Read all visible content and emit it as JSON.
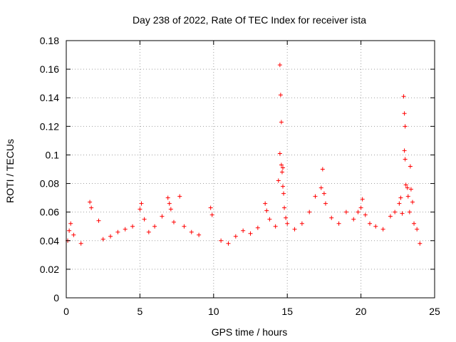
{
  "chart_data": {
    "type": "scatter",
    "title": "Day 238 of 2022, Rate Of TEC Index for receiver ista",
    "xlabel": "GPS time / hours",
    "ylabel": "ROTI / TECUs",
    "xlim": [
      0,
      25
    ],
    "ylim": [
      0,
      0.18
    ],
    "x_ticks": [
      0,
      5,
      10,
      15,
      20,
      25
    ],
    "x_tick_labels": [
      "0",
      "5",
      "10",
      "15",
      "20",
      "25"
    ],
    "y_ticks": [
      0,
      0.02,
      0.04,
      0.06,
      0.08,
      0.1,
      0.12,
      0.14,
      0.16,
      0.18
    ],
    "y_tick_labels": [
      "0",
      "0.02",
      "0.04",
      "0.06",
      "0.08",
      "0.1",
      "0.12",
      "0.14",
      "0.16",
      "0.18"
    ],
    "grid": true,
    "marker": "+",
    "series": [
      {
        "name": "ROTI",
        "color": "#ff0000",
        "points": [
          [
            0.1,
            0.04
          ],
          [
            0.2,
            0.047
          ],
          [
            0.3,
            0.052
          ],
          [
            0.5,
            0.044
          ],
          [
            1.0,
            0.038
          ],
          [
            1.6,
            0.067
          ],
          [
            1.7,
            0.063
          ],
          [
            2.2,
            0.054
          ],
          [
            2.5,
            0.041
          ],
          [
            3.0,
            0.043
          ],
          [
            3.5,
            0.046
          ],
          [
            4.0,
            0.048
          ],
          [
            4.5,
            0.05
          ],
          [
            5.0,
            0.062
          ],
          [
            5.1,
            0.066
          ],
          [
            5.3,
            0.055
          ],
          [
            5.6,
            0.046
          ],
          [
            6.0,
            0.05
          ],
          [
            6.5,
            0.057
          ],
          [
            6.9,
            0.07
          ],
          [
            7.0,
            0.066
          ],
          [
            7.1,
            0.062
          ],
          [
            7.3,
            0.053
          ],
          [
            7.7,
            0.071
          ],
          [
            8.0,
            0.05
          ],
          [
            8.5,
            0.046
          ],
          [
            9.0,
            0.044
          ],
          [
            9.8,
            0.063
          ],
          [
            9.9,
            0.058
          ],
          [
            10.5,
            0.04
          ],
          [
            11.0,
            0.038
          ],
          [
            11.5,
            0.043
          ],
          [
            12.0,
            0.047
          ],
          [
            12.5,
            0.045
          ],
          [
            13.0,
            0.049
          ],
          [
            13.5,
            0.066
          ],
          [
            13.6,
            0.061
          ],
          [
            13.8,
            0.055
          ],
          [
            14.2,
            0.05
          ],
          [
            14.4,
            0.082
          ],
          [
            14.5,
            0.163
          ],
          [
            14.55,
            0.142
          ],
          [
            14.6,
            0.123
          ],
          [
            14.5,
            0.101
          ],
          [
            14.6,
            0.093
          ],
          [
            14.7,
            0.091
          ],
          [
            14.65,
            0.088
          ],
          [
            14.7,
            0.078
          ],
          [
            14.75,
            0.073
          ],
          [
            14.8,
            0.063
          ],
          [
            14.9,
            0.056
          ],
          [
            15.0,
            0.052
          ],
          [
            15.5,
            0.048
          ],
          [
            16.0,
            0.052
          ],
          [
            16.5,
            0.06
          ],
          [
            16.9,
            0.071
          ],
          [
            17.3,
            0.077
          ],
          [
            17.4,
            0.09
          ],
          [
            17.5,
            0.073
          ],
          [
            17.6,
            0.066
          ],
          [
            18.0,
            0.056
          ],
          [
            18.5,
            0.052
          ],
          [
            19.0,
            0.06
          ],
          [
            19.5,
            0.055
          ],
          [
            19.8,
            0.06
          ],
          [
            20.0,
            0.063
          ],
          [
            20.1,
            0.069
          ],
          [
            20.3,
            0.058
          ],
          [
            20.6,
            0.052
          ],
          [
            21.0,
            0.05
          ],
          [
            21.5,
            0.048
          ],
          [
            22.0,
            0.057
          ],
          [
            22.3,
            0.06
          ],
          [
            22.6,
            0.066
          ],
          [
            22.7,
            0.07
          ],
          [
            22.8,
            0.059
          ],
          [
            22.9,
            0.141
          ],
          [
            22.95,
            0.129
          ],
          [
            23.0,
            0.12
          ],
          [
            22.95,
            0.103
          ],
          [
            23.0,
            0.097
          ],
          [
            23.05,
            0.079
          ],
          [
            23.15,
            0.077
          ],
          [
            23.2,
            0.071
          ],
          [
            23.3,
            0.06
          ],
          [
            23.4,
            0.076
          ],
          [
            23.5,
            0.067
          ],
          [
            23.35,
            0.092
          ],
          [
            23.6,
            0.052
          ],
          [
            23.8,
            0.048
          ],
          [
            24.0,
            0.038
          ]
        ]
      }
    ]
  }
}
